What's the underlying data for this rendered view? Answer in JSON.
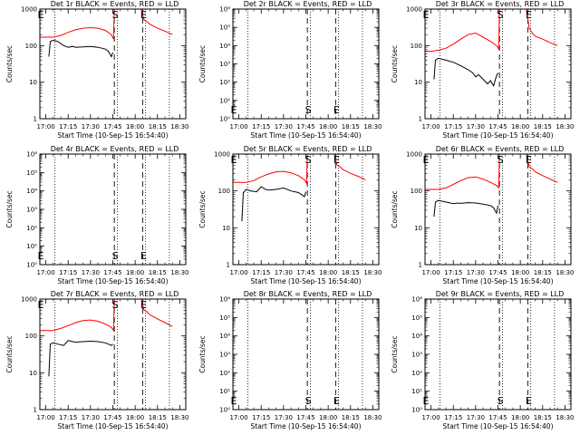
{
  "figure": {
    "xlabel": "Start Time (10-Sep-15 16:54:40)",
    "ylabel": "Counts/sec"
  },
  "chart_data": [
    {
      "type": "line",
      "title": "Det 1r BLACK = Events, RED = LLD",
      "has_data": true,
      "ylim": [
        1,
        1000
      ],
      "log": true,
      "ytick_labels": [
        "1",
        "10",
        "100",
        "1000"
      ],
      "ytick_values": [
        1,
        10,
        100,
        1000
      ],
      "xtick_labels": [
        "17:00",
        "17:15",
        "17:30",
        "17:45",
        "18:00",
        "18:15",
        "18:30"
      ],
      "x_minutes": [
        0,
        15,
        30,
        45,
        60,
        75,
        90
      ],
      "markers": [
        {
          "label": "E",
          "x_min": -4
        },
        {
          "label": "S",
          "x_min": 46
        },
        {
          "label": "E",
          "x_min": 65
        }
      ],
      "dotted_x": [
        6,
        48,
        67,
        83
      ],
      "dashed_x": [
        46,
        65
      ],
      "series": [
        {
          "color": "#ff0000",
          "x": [
            -4,
            0,
            5,
            10,
            15,
            20,
            25,
            30,
            35,
            40,
            44,
            45.5,
            46,
            48,
            50,
            52,
            54,
            56,
            58,
            60,
            62,
            64,
            66,
            68,
            70,
            75,
            80,
            85
          ],
          "y": [
            170,
            170,
            170,
            190,
            230,
            270,
            300,
            310,
            300,
            260,
            200,
            150,
            1000,
            1000,
            1000,
            1000,
            1000,
            1000,
            1000,
            1000,
            1000,
            1000,
            500,
            450,
            380,
            300,
            250,
            200
          ]
        },
        {
          "color": "#000000",
          "x": [
            2,
            3,
            5,
            8,
            12,
            15,
            18,
            20,
            25,
            30,
            35,
            40,
            42,
            44,
            45
          ],
          "y": [
            50,
            130,
            140,
            130,
            100,
            90,
            95,
            90,
            92,
            95,
            90,
            80,
            70,
            50,
            65
          ]
        }
      ]
    },
    {
      "type": "line",
      "title": "Det 2r BLACK = Events, RED = LLD",
      "has_data": false,
      "ylim": [
        1,
        1000000
      ],
      "log": true,
      "ytick_labels": [
        "10⁰",
        "10¹",
        "10²",
        "10³",
        "10⁴",
        "10⁵",
        "10⁶"
      ],
      "ytick_values": [
        1,
        10,
        100,
        1000,
        10000,
        100000,
        1000000
      ],
      "xtick_labels": [
        "17:00",
        "17:15",
        "17:30",
        "17:45",
        "18:00",
        "18:15",
        "18:30"
      ],
      "x_minutes": [
        0,
        15,
        30,
        45,
        60,
        75,
        90
      ],
      "markers": [
        {
          "label": "E",
          "x_min": -4
        },
        {
          "label": "S",
          "x_min": 46
        },
        {
          "label": "E",
          "x_min": 65
        }
      ],
      "dotted_x": [
        6,
        48,
        67,
        83
      ],
      "dashed_x": [
        46,
        65
      ],
      "series": []
    },
    {
      "type": "line",
      "title": "Det 3r BLACK = Events, RED = LLD",
      "has_data": true,
      "ylim": [
        1,
        1000
      ],
      "log": true,
      "ytick_labels": [
        "1",
        "10",
        "100",
        "1000"
      ],
      "ytick_values": [
        1,
        10,
        100,
        1000
      ],
      "xtick_labels": [
        "17:00",
        "17:15",
        "17:30",
        "17:45",
        "18:00",
        "18:15",
        "18:30"
      ],
      "x_minutes": [
        0,
        15,
        30,
        45,
        60,
        75,
        90
      ],
      "markers": [
        {
          "label": "E",
          "x_min": -4
        },
        {
          "label": "S",
          "x_min": 46
        },
        {
          "label": "E",
          "x_min": 65
        }
      ],
      "dotted_x": [
        6,
        48,
        67,
        83
      ],
      "dashed_x": [
        46,
        65
      ],
      "series": [
        {
          "color": "#ff0000",
          "x": [
            -4,
            0,
            5,
            10,
            15,
            20,
            25,
            30,
            35,
            40,
            44,
            45.5,
            46,
            48,
            50,
            52,
            54,
            56,
            58,
            60,
            62,
            64,
            66,
            68,
            70,
            75,
            80,
            85
          ],
          "y": [
            70,
            70,
            75,
            85,
            110,
            150,
            200,
            220,
            170,
            130,
            100,
            80,
            1000,
            1000,
            1000,
            1000,
            1000,
            1000,
            1000,
            1000,
            1000,
            1000,
            300,
            220,
            180,
            150,
            120,
            100
          ]
        },
        {
          "color": "#000000",
          "x": [
            2,
            3,
            5,
            10,
            15,
            20,
            25,
            28,
            30,
            32,
            35,
            38,
            40,
            42,
            44,
            45
          ],
          "y": [
            12,
            40,
            45,
            40,
            35,
            28,
            22,
            18,
            14,
            16,
            12,
            9,
            11,
            8,
            15,
            18
          ]
        }
      ]
    },
    {
      "type": "line",
      "title": "Det 4r BLACK = Events, RED = LLD",
      "has_data": false,
      "ylim": [
        1,
        1000000
      ],
      "log": true,
      "ytick_labels": [
        "10⁰",
        "10¹",
        "10²",
        "10³",
        "10⁴",
        "10⁵",
        "10⁶"
      ],
      "ytick_values": [
        1,
        10,
        100,
        1000,
        10000,
        100000,
        1000000
      ],
      "xtick_labels": [
        "17:00",
        "17:15",
        "17:30",
        "17:45",
        "18:00",
        "18:15",
        "18:30"
      ],
      "x_minutes": [
        0,
        15,
        30,
        45,
        60,
        75,
        90
      ],
      "markers": [
        {
          "label": "E",
          "x_min": -4
        },
        {
          "label": "S",
          "x_min": 46
        },
        {
          "label": "E",
          "x_min": 65
        }
      ],
      "dotted_x": [
        6,
        48,
        67,
        83
      ],
      "dashed_x": [
        46,
        65
      ],
      "series": []
    },
    {
      "type": "line",
      "title": "Det 5r BLACK = Events, RED = LLD",
      "has_data": true,
      "ylim": [
        1,
        1000
      ],
      "log": true,
      "ytick_labels": [
        "1",
        "10",
        "100",
        "1000"
      ],
      "ytick_values": [
        1,
        10,
        100,
        1000
      ],
      "xtick_labels": [
        "17:00",
        "17:15",
        "17:30",
        "17:45",
        "18:00",
        "18:15",
        "18:30"
      ],
      "x_minutes": [
        0,
        15,
        30,
        45,
        60,
        75,
        90
      ],
      "markers": [
        {
          "label": "E",
          "x_min": -4
        },
        {
          "label": "S",
          "x_min": 46
        },
        {
          "label": "E",
          "x_min": 65
        }
      ],
      "dotted_x": [
        6,
        48,
        67,
        83
      ],
      "dashed_x": [
        46,
        65
      ],
      "series": [
        {
          "color": "#ff0000",
          "x": [
            -4,
            0,
            5,
            10,
            15,
            20,
            25,
            30,
            35,
            40,
            44,
            45.5,
            46,
            48,
            50,
            52,
            54,
            56,
            58,
            60,
            62,
            64,
            66,
            68,
            70,
            75,
            80,
            85
          ],
          "y": [
            170,
            170,
            170,
            190,
            240,
            290,
            330,
            340,
            310,
            260,
            200,
            160,
            1000,
            1000,
            1000,
            1000,
            1000,
            1000,
            1000,
            1000,
            1000,
            1000,
            500,
            450,
            380,
            300,
            250,
            200
          ]
        },
        {
          "color": "#000000",
          "x": [
            2,
            3,
            5,
            8,
            12,
            15,
            18,
            20,
            25,
            30,
            35,
            40,
            42,
            44,
            45
          ],
          "y": [
            15,
            90,
            110,
            100,
            95,
            130,
            110,
            105,
            110,
            120,
            100,
            90,
            80,
            70,
            95
          ]
        }
      ]
    },
    {
      "type": "line",
      "title": "Det 6r BLACK = Events, RED = LLD",
      "has_data": true,
      "ylim": [
        1,
        1000
      ],
      "log": true,
      "ytick_labels": [
        "1",
        "10",
        "100",
        "1000"
      ],
      "ytick_values": [
        1,
        10,
        100,
        1000
      ],
      "xtick_labels": [
        "17:00",
        "17:15",
        "17:30",
        "17:45",
        "18:00",
        "18:15",
        "18:30"
      ],
      "x_minutes": [
        0,
        15,
        30,
        45,
        60,
        75,
        90
      ],
      "markers": [
        {
          "label": "E",
          "x_min": -4
        },
        {
          "label": "S",
          "x_min": 46
        },
        {
          "label": "E",
          "x_min": 65
        }
      ],
      "dotted_x": [
        6,
        48,
        67,
        83
      ],
      "dashed_x": [
        46,
        65
      ],
      "series": [
        {
          "color": "#ff0000",
          "x": [
            -4,
            0,
            5,
            10,
            15,
            20,
            25,
            30,
            35,
            40,
            44,
            45.5,
            46,
            48,
            50,
            52,
            54,
            56,
            58,
            60,
            62,
            64,
            66,
            68,
            70,
            75,
            80,
            85
          ],
          "y": [
            110,
            110,
            110,
            120,
            150,
            190,
            230,
            240,
            210,
            170,
            140,
            120,
            1000,
            1000,
            1000,
            1000,
            1000,
            1000,
            1000,
            1000,
            1000,
            1000,
            450,
            400,
            330,
            260,
            210,
            170
          ]
        },
        {
          "color": "#000000",
          "x": [
            2,
            3,
            5,
            8,
            12,
            15,
            18,
            20,
            25,
            30,
            35,
            40,
            42,
            44,
            45
          ],
          "y": [
            20,
            50,
            55,
            52,
            48,
            45,
            47,
            46,
            48,
            47,
            44,
            40,
            35,
            25,
            40
          ]
        }
      ]
    },
    {
      "type": "line",
      "title": "Det 7r BLACK = Events, RED = LLD",
      "has_data": true,
      "ylim": [
        1,
        1000
      ],
      "log": true,
      "ytick_labels": [
        "1",
        "10",
        "100",
        "1000"
      ],
      "ytick_values": [
        1,
        10,
        100,
        1000
      ],
      "xtick_labels": [
        "17:00",
        "17:15",
        "17:30",
        "17:45",
        "18:00",
        "18:15",
        "18:30"
      ],
      "x_minutes": [
        0,
        15,
        30,
        45,
        60,
        75,
        90
      ],
      "markers": [
        {
          "label": "E",
          "x_min": -4
        },
        {
          "label": "S",
          "x_min": 46
        },
        {
          "label": "E",
          "x_min": 65
        }
      ],
      "dotted_x": [
        6,
        48,
        67,
        83
      ],
      "dashed_x": [
        46,
        65
      ],
      "series": [
        {
          "color": "#ff0000",
          "x": [
            -4,
            0,
            5,
            10,
            15,
            20,
            25,
            30,
            35,
            40,
            44,
            45.5,
            46,
            48,
            50,
            52,
            54,
            56,
            58,
            60,
            62,
            64,
            66,
            68,
            70,
            75,
            80,
            85
          ],
          "y": [
            140,
            140,
            140,
            160,
            190,
            230,
            260,
            270,
            250,
            210,
            170,
            140,
            1000,
            1000,
            1000,
            1000,
            1000,
            1000,
            1000,
            1000,
            1000,
            1000,
            500,
            450,
            370,
            290,
            230,
            180
          ]
        },
        {
          "color": "#000000",
          "x": [
            2,
            3,
            5,
            8,
            12,
            15,
            18,
            20,
            25,
            30,
            35,
            40,
            42,
            44,
            45
          ],
          "y": [
            8,
            60,
            65,
            60,
            55,
            75,
            70,
            68,
            70,
            72,
            70,
            65,
            60,
            55,
            60
          ]
        }
      ]
    },
    {
      "type": "line",
      "title": "Det 8r BLACK = Events, RED = LLD",
      "has_data": false,
      "ylim": [
        1,
        1000000
      ],
      "log": true,
      "ytick_labels": [
        "10⁰",
        "10¹",
        "10²",
        "10³",
        "10⁴",
        "10⁵",
        "10⁶"
      ],
      "ytick_values": [
        1,
        10,
        100,
        1000,
        10000,
        100000,
        1000000
      ],
      "xtick_labels": [
        "17:00",
        "17:15",
        "17:30",
        "17:45",
        "18:00",
        "18:15",
        "18:30"
      ],
      "x_minutes": [
        0,
        15,
        30,
        45,
        60,
        75,
        90
      ],
      "markers": [
        {
          "label": "E",
          "x_min": -4
        },
        {
          "label": "S",
          "x_min": 46
        },
        {
          "label": "E",
          "x_min": 65
        }
      ],
      "dotted_x": [
        6,
        48,
        67,
        83
      ],
      "dashed_x": [
        46,
        65
      ],
      "series": []
    },
    {
      "type": "line",
      "title": "Det 9r BLACK = Events, RED = LLD",
      "has_data": false,
      "ylim": [
        1,
        1000000
      ],
      "log": true,
      "ytick_labels": [
        "10⁰",
        "10¹",
        "10²",
        "10³",
        "10⁴",
        "10⁵",
        "10⁶"
      ],
      "ytick_values": [
        1,
        10,
        100,
        1000,
        10000,
        100000,
        1000000
      ],
      "xtick_labels": [
        "17:00",
        "17:15",
        "17:30",
        "17:45",
        "18:00",
        "18:15",
        "18:30"
      ],
      "x_minutes": [
        0,
        15,
        30,
        45,
        60,
        75,
        90
      ],
      "markers": [
        {
          "label": "E",
          "x_min": -4
        },
        {
          "label": "S",
          "x_min": 46
        },
        {
          "label": "E",
          "x_min": 65
        }
      ],
      "dotted_x": [
        6,
        48,
        67,
        83
      ],
      "dashed_x": [
        46,
        65
      ],
      "series": []
    }
  ]
}
